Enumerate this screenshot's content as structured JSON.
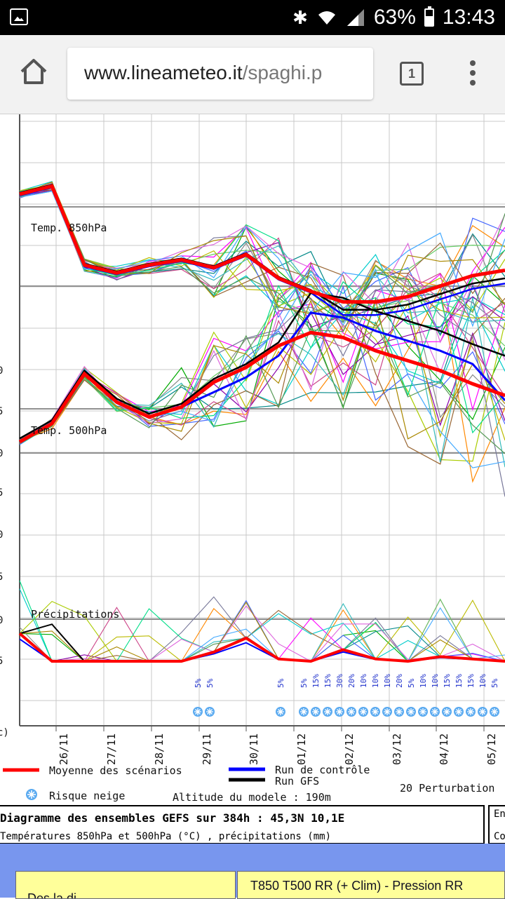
{
  "status_bar": {
    "battery": "63%",
    "time": "13:43",
    "icons": [
      "gallery-icon",
      "bluetooth-icon",
      "wifi-icon",
      "signal-icon",
      "battery-icon"
    ]
  },
  "browser": {
    "url_domain": "www.lineameteo.it",
    "url_path": "/spaghi.p",
    "tab_count": "1"
  },
  "panels": {
    "t850_label": "Temp. 850hPa",
    "t500_label": "Temp. 500hPa",
    "precip_label": "Précipitations"
  },
  "left_ticks": [
    "0",
    "5",
    "0",
    "5",
    "0",
    "5",
    "0",
    "5",
    "c)"
  ],
  "chart_data": {
    "type": "line",
    "x_dates": [
      "26/11",
      "27/11",
      "28/11",
      "29/11",
      "30/11",
      "01/12",
      "02/12",
      "03/12",
      "04/12",
      "05/12"
    ],
    "snow_risk": [
      "5%",
      "5%",
      "5%",
      "5%",
      "15%",
      "15%",
      "30%",
      "20%",
      "10%",
      "10%",
      "10%",
      "20%",
      "5%",
      "10%",
      "10%",
      "15%",
      "15%",
      "15%",
      "10%",
      "5%"
    ],
    "legend": {
      "mean": "Moyenne des scénarios",
      "control": "Run de contrôle",
      "gfs": "Run GFS",
      "snow": "Risque neige",
      "altitude": "Altitude du modele : 190m",
      "perturbations": "20 Perturbation"
    },
    "colors": {
      "mean": "#ff0000",
      "control": "#0000ff",
      "gfs": "#000000",
      "snow": "#5aaaf0"
    },
    "t850_mean": [
      3.5,
      3.8,
      0.8,
      0.5,
      0.8,
      1.0,
      0.7,
      1.2,
      0.3,
      -0.2,
      -0.6,
      -0.6,
      -0.4,
      0.0,
      0.4,
      0.6
    ],
    "t500_mean": [
      -18.7,
      -19.8,
      -22.8,
      -21.1,
      -20.2,
      -20.8,
      -22.3,
      -23.2,
      -24.5,
      -25.3,
      -25.0,
      -24.2,
      -23.6,
      -23.0,
      -22.2,
      -21.5
    ],
    "precip_mean": [
      1.2,
      0.0,
      0.0,
      0.0,
      0.0,
      0.0,
      0.4,
      1.0,
      0.1,
      0.0,
      0.5,
      0.1,
      0.0,
      0.2,
      0.1,
      0.0
    ]
  },
  "info": {
    "title": "Diagramme des ensembles GEFS sur 384h : 45,3N 10,1E",
    "subtitle": "Températures 850hPa et 500hPa (°C) , précipitations (mm)",
    "right_top": "En",
    "right_bottom": "Co"
  },
  "footer": {
    "left": "Des la di",
    "right": "T850 T500 RR (+ Clim) - Pression RR"
  }
}
